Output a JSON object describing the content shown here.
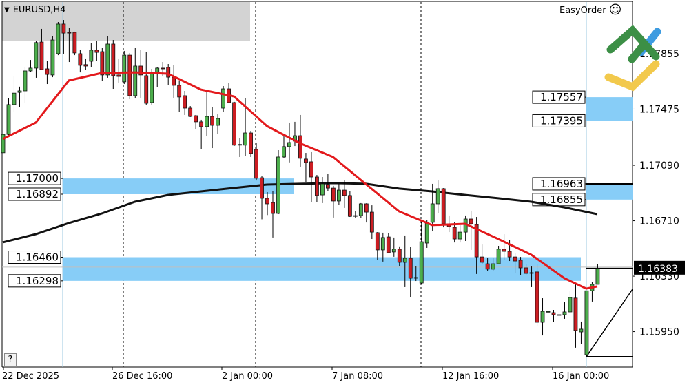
{
  "header": {
    "symbol_timeframe": "EURUSD,H4",
    "menu_icon": "triangle-down-icon"
  },
  "easyorder": {
    "label": "EasyOrder",
    "icon": "smiley-icon",
    "logo": "easyorder-logo"
  },
  "help_button": {
    "label": "?"
  },
  "chart_data": {
    "type": "candlestick",
    "symbol": "EURUSD",
    "timeframe": "H4",
    "x_ticks": [
      "22 Dec 2025",
      "26 Dec 16:00",
      "2 Jan 00:00",
      "7 Jan 08:00",
      "12 Jan 16:00",
      "16 Jan 00:00"
    ],
    "y_ticks": [
      "1.17855",
      "1.17475",
      "1.17090",
      "1.16710",
      "1.16330",
      "1.15950"
    ],
    "bid": "1.16383",
    "colors": {
      "bull": "#4cae4c",
      "bear": "#cc1d22",
      "ma_fast": "#e3191c",
      "ma_slow": "#111111",
      "zone": "#87cdf7",
      "bid_label_bg": "#000000"
    },
    "candles": [
      [
        1.17176,
        1.17421,
        1.17147,
        1.17302
      ],
      [
        1.17302,
        1.17548,
        1.17284,
        1.17506
      ],
      [
        1.17506,
        1.17699,
        1.17454,
        1.17585
      ],
      [
        1.1759,
        1.17629,
        1.17491,
        1.176
      ],
      [
        1.176,
        1.17765,
        1.17515,
        1.17737
      ],
      [
        1.17737,
        1.17812,
        1.17732,
        1.17756
      ],
      [
        1.17756,
        1.1794,
        1.1769,
        1.17931
      ],
      [
        1.17935,
        1.18025,
        1.17742,
        1.17746
      ],
      [
        1.17751,
        1.17807,
        1.17647,
        1.17713
      ],
      [
        1.17709,
        1.17973,
        1.17694,
        1.17949
      ],
      [
        1.17855,
        1.18072,
        1.17845,
        1.18058
      ],
      [
        1.18058,
        1.18086,
        1.17855,
        1.17996
      ],
      [
        1.18001,
        1.18034,
        1.17798,
        1.17996
      ],
      [
        1.18001,
        1.18006,
        1.17845,
        1.1786
      ],
      [
        1.17855,
        1.17879,
        1.17727,
        1.17775
      ],
      [
        1.1778,
        1.17822,
        1.17742,
        1.1777
      ],
      [
        1.17803,
        1.17926,
        1.17761,
        1.17879
      ],
      [
        1.17879,
        1.1794,
        1.17803,
        1.17864
      ],
      [
        1.17869,
        1.17897,
        1.17666,
        1.17709
      ],
      [
        1.17709,
        1.17973,
        1.1769,
        1.17921
      ],
      [
        1.17921,
        1.17949,
        1.17614,
        1.17704
      ],
      [
        1.17709,
        1.17822,
        1.17657,
        1.17699
      ],
      [
        1.17662,
        1.17874,
        1.17647,
        1.17845
      ],
      [
        1.17845,
        1.1786,
        1.17543,
        1.17567
      ],
      [
        1.17567,
        1.17897,
        1.17548,
        1.1777
      ],
      [
        1.1777,
        1.17879,
        1.17553,
        1.17709
      ],
      [
        1.17704,
        1.17869,
        1.17501,
        1.17515
      ],
      [
        1.1752,
        1.17751,
        1.17506,
        1.17727
      ],
      [
        1.17727,
        1.17761,
        1.17624,
        1.17756
      ],
      [
        1.17756,
        1.17798,
        1.17704,
        1.17751
      ],
      [
        1.17761,
        1.17784,
        1.1764,
        1.17694
      ],
      [
        1.17694,
        1.17775,
        1.17553,
        1.17638
      ],
      [
        1.17638,
        1.17671,
        1.17454,
        1.17558
      ],
      [
        1.17567,
        1.176,
        1.17435,
        1.17482
      ],
      [
        1.17482,
        1.17496,
        1.17421,
        1.17425
      ],
      [
        1.1743,
        1.17435,
        1.17336,
        1.17388
      ],
      [
        1.17388,
        1.17402,
        1.17199,
        1.17355
      ],
      [
        1.17355,
        1.17595,
        1.17289,
        1.17425
      ],
      [
        1.17425,
        1.17491,
        1.17208,
        1.17364
      ],
      [
        1.17364,
        1.17439,
        1.17303,
        1.17411
      ],
      [
        1.17482,
        1.17633,
        1.17458,
        1.17614
      ],
      [
        1.17614,
        1.17652,
        1.17515,
        1.1752
      ],
      [
        1.1752,
        1.17525,
        1.17223,
        1.17228
      ],
      [
        1.17228,
        1.17279,
        1.17147,
        1.17233
      ],
      [
        1.17228,
        1.17548,
        1.17156,
        1.17312
      ],
      [
        1.17312,
        1.17326,
        1.17147,
        1.17171
      ],
      [
        1.17199,
        1.17246,
        1.16986,
        1.17001
      ],
      [
        1.17005,
        1.17019,
        1.1672,
        1.16864
      ],
      [
        1.16864,
        1.16906,
        1.16749,
        1.16826
      ],
      [
        1.16835,
        1.16911,
        1.16595,
        1.1676
      ],
      [
        1.1676,
        1.17194,
        1.16755,
        1.17147
      ],
      [
        1.17147,
        1.17289,
        1.17138,
        1.17218
      ],
      [
        1.17218,
        1.17383,
        1.1711,
        1.17246
      ],
      [
        1.17256,
        1.17388,
        1.17222,
        1.17293
      ],
      [
        1.17293,
        1.17435,
        1.17081,
        1.17138
      ],
      [
        1.17133,
        1.17175,
        1.16976,
        1.17109
      ],
      [
        1.17114,
        1.1718,
        1.1684,
        1.1701
      ],
      [
        1.1701,
        1.17024,
        1.1684,
        1.16883
      ],
      [
        1.16887,
        1.1701,
        1.16831,
        1.16963
      ],
      [
        1.16958,
        1.17029,
        1.16911,
        1.16934
      ],
      [
        1.16934,
        1.16949,
        1.16732,
        1.16845
      ],
      [
        1.16845,
        1.16963,
        1.16817,
        1.1692
      ],
      [
        1.1692,
        1.16991,
        1.16798,
        1.16883
      ],
      [
        1.16883,
        1.16911,
        1.16736,
        1.1674
      ],
      [
        1.16745,
        1.16778,
        1.16727,
        1.16742
      ],
      [
        1.16745,
        1.16831,
        1.16727,
        1.16826
      ],
      [
        1.16826,
        1.1683,
        1.16698,
        1.16769
      ],
      [
        1.16769,
        1.16816,
        1.16585,
        1.16632
      ],
      [
        1.16628,
        1.16632,
        1.16439,
        1.1651
      ],
      [
        1.1651,
        1.16628,
        1.1643,
        1.16595
      ],
      [
        1.16599,
        1.16623,
        1.16486,
        1.16491
      ],
      [
        1.16496,
        1.16595,
        1.16463,
        1.16515
      ],
      [
        1.16515,
        1.16534,
        1.16397,
        1.16425
      ],
      [
        1.16425,
        1.16609,
        1.16255,
        1.16453
      ],
      [
        1.16453,
        1.16529,
        1.16184,
        1.16316
      ],
      [
        1.16321,
        1.16401,
        1.16297,
        1.16318
      ],
      [
        1.16283,
        1.16713,
        1.16278,
        1.16566
      ],
      [
        1.16557,
        1.16713,
        1.16524,
        1.16694
      ],
      [
        1.16699,
        1.16963,
        1.16637,
        1.16826
      ],
      [
        1.16826,
        1.16986,
        1.1676,
        1.1693
      ],
      [
        1.1693,
        1.16934,
        1.16665,
        1.16689
      ],
      [
        1.16689,
        1.16746,
        1.16632,
        1.1667
      ],
      [
        1.16665,
        1.16703,
        1.16561,
        1.16585
      ],
      [
        1.16585,
        1.16679,
        1.16561,
        1.16632
      ],
      [
        1.16632,
        1.16746,
        1.16571,
        1.16722
      ],
      [
        1.16722,
        1.16779,
        1.1651,
        1.16689
      ],
      [
        1.16684,
        1.16736,
        1.16345,
        1.16462
      ],
      [
        1.16462,
        1.16547,
        1.16415,
        1.16425
      ],
      [
        1.16415,
        1.16453,
        1.16368,
        1.16378
      ],
      [
        1.16378,
        1.16453,
        1.16368,
        1.16415
      ],
      [
        1.16415,
        1.16538,
        1.16412,
        1.16515
      ],
      [
        1.16515,
        1.16618,
        1.16439,
        1.165
      ],
      [
        1.165,
        1.16576,
        1.16434,
        1.16462
      ],
      [
        1.16462,
        1.16491,
        1.16349,
        1.16434
      ],
      [
        1.16439,
        1.16462,
        1.16335,
        1.16387
      ],
      [
        1.16387,
        1.16415,
        1.16335,
        1.16349
      ],
      [
        1.16354,
        1.16396,
        1.16255,
        1.16352
      ],
      [
        1.16359,
        1.16415,
        1.15991,
        1.16014
      ],
      [
        1.16014,
        1.16179,
        1.15924,
        1.16089
      ],
      [
        1.16085,
        1.16179,
        1.15981,
        1.16088
      ],
      [
        1.1608,
        1.16099,
        1.16019,
        1.16066
      ],
      [
        1.16066,
        1.16137,
        1.16019,
        1.16064
      ],
      [
        1.16066,
        1.16151,
        1.16038,
        1.16085
      ],
      [
        1.16085,
        1.16231,
        1.1608,
        1.16184
      ],
      [
        1.1618,
        1.16274,
        1.1584,
        1.15958
      ],
      [
        1.15948,
        1.16019,
        1.15863,
        1.15967
      ],
      [
        1.15792,
        1.1623,
        1.15783,
        1.1623
      ],
      [
        1.1623,
        1.16288,
        1.16156,
        1.16274
      ],
      [
        1.16274,
        1.16415,
        1.16274,
        1.16383
      ]
    ],
    "ma_fast": [
      [
        0,
        1.1727
      ],
      [
        6,
        1.17383
      ],
      [
        12,
        1.17671
      ],
      [
        18,
        1.17723
      ],
      [
        24,
        1.17727
      ],
      [
        30,
        1.17718
      ],
      [
        36,
        1.17609
      ],
      [
        42,
        1.17562
      ],
      [
        48,
        1.17359
      ],
      [
        54,
        1.17241
      ],
      [
        60,
        1.17147
      ],
      [
        66,
        1.1696
      ],
      [
        72,
        1.16774
      ],
      [
        78,
        1.1668
      ],
      [
        84,
        1.16689
      ],
      [
        90,
        1.16585
      ],
      [
        96,
        1.16477
      ],
      [
        102,
        1.16316
      ],
      [
        106,
        1.16245
      ],
      [
        108,
        1.1626
      ]
    ],
    "ma_slow": [
      [
        0,
        1.16562
      ],
      [
        6,
        1.16618
      ],
      [
        12,
        1.16694
      ],
      [
        18,
        1.1676
      ],
      [
        24,
        1.1684
      ],
      [
        30,
        1.16887
      ],
      [
        36,
        1.16911
      ],
      [
        42,
        1.16935
      ],
      [
        48,
        1.16958
      ],
      [
        54,
        1.16963
      ],
      [
        60,
        1.16968
      ],
      [
        66,
        1.16963
      ],
      [
        72,
        1.1693
      ],
      [
        78,
        1.16911
      ],
      [
        84,
        1.16887
      ],
      [
        90,
        1.16864
      ],
      [
        96,
        1.1684
      ],
      [
        102,
        1.16802
      ],
      [
        108,
        1.16755
      ]
    ],
    "zones": [
      {
        "name": "zone-1.17557",
        "high": "1.17557",
        "low": "1.17395",
        "side": "right"
      },
      {
        "name": "zone-1.17000",
        "high": "1.17000",
        "low": "1.16892",
        "side": "left"
      },
      {
        "name": "zone-1.16963",
        "high": "1.16963",
        "low": "1.16855",
        "side": "right"
      },
      {
        "name": "zone-1.16460",
        "high": "1.16460",
        "low": "1.16298",
        "side": "left"
      }
    ]
  }
}
